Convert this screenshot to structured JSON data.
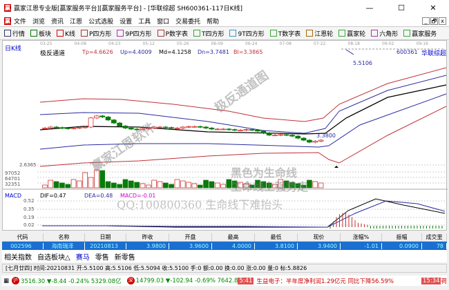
{
  "window": {
    "title": "赢家江恩专业版[赢家服务平台][赢家服务平台] - [华联综超  SH600361-117日K线]",
    "logo": "赢",
    "minimize": "—",
    "maximize": "☐",
    "close": "✕"
  },
  "menu": {
    "items": [
      "文件",
      "浏览",
      "资讯",
      "江恩",
      "公式选股",
      "设置",
      "工具",
      "窗口",
      "交易委托",
      "帮助"
    ],
    "mdi": [
      "_",
      "🗗",
      "x"
    ]
  },
  "toolbar": {
    "items": [
      {
        "icon": "grid-icon",
        "label": "行情"
      },
      {
        "icon": "blocks-icon",
        "label": "板块"
      },
      {
        "icon": "kline-icon",
        "label": "K线"
      },
      {
        "icon": "p-square-icon",
        "label": "P四方形"
      },
      {
        "icon": "9p-square-icon",
        "label": "9P四方形"
      },
      {
        "icon": "p-number-icon",
        "label": "P数字表"
      },
      {
        "icon": "t-square-icon",
        "label": "T四方形"
      },
      {
        "icon": "9t-square-icon",
        "label": "9T四方形"
      },
      {
        "icon": "t-number-icon",
        "label": "T数字表"
      },
      {
        "icon": "gann-wheel-icon",
        "label": "江恩轮"
      },
      {
        "icon": "winner-wheel-icon",
        "label": "赢家轮"
      },
      {
        "icon": "hexagon-icon",
        "label": "六角形"
      },
      {
        "icon": "dollar-icon",
        "label": "赢家服务"
      }
    ]
  },
  "chart": {
    "period": "日K线",
    "dates": [
      "03-25",
      "04-08",
      "04-23",
      "05-12",
      "05-26",
      "06-09",
      "06-24",
      "07-08",
      "07-22",
      "08-18",
      "09-02",
      "09-16"
    ],
    "indicator": "极反通道",
    "params": {
      "tp": "Tp=4.6626",
      "up": "Up=4.4009",
      "md": "Md=4.1258",
      "dn": "Dn=3.7481",
      "bl": "Bl=3.3865"
    },
    "stock": {
      "code": "600361",
      "name": "华联综超"
    },
    "high_label": "5.5106",
    "low_label": "3.3800",
    "price_axis": "2.6365",
    "vol_axis": [
      "97052",
      "64701",
      "32351"
    ],
    "colors": {
      "tp": "#c0303a",
      "up": "#2a2aa0",
      "md": "#000000",
      "dn": "#2a2aa0",
      "bl": "#c0303a",
      "up_candle": "#d03030",
      "down_candle": "#0a7a0a"
    },
    "closes": [
      4.1,
      4.12,
      4.11,
      4.1,
      4.09,
      4.1,
      4.11,
      4.12,
      4.3,
      4.34,
      4.32,
      4.26,
      4.2,
      4.14,
      4.1,
      4.08,
      4.07,
      4.09,
      4.1,
      4.12,
      4.12,
      4.11,
      4.1,
      4.1,
      4.12,
      4.13,
      4.13,
      4.12,
      4.1,
      4.08,
      4.08,
      4.08,
      4.07,
      4.06,
      4.06,
      4.07,
      4.06,
      4.04,
      4.0,
      3.96,
      3.96,
      3.97,
      3.96,
      3.94,
      3.9,
      3.86,
      3.82,
      3.84,
      3.86
    ]
  },
  "macd": {
    "title": "MACD",
    "dif": "DIF=0.47",
    "dea": "DEA=0.48",
    "macd": "MACD=-0.01",
    "axis": [
      "0.52",
      "0.35",
      "0.19",
      "0.02"
    ]
  },
  "watermarks": [
    "极反通道图",
    "赢家江恩软件",
    "黑色为生命线",
    "生命线上强势走",
    "QQ:100800360  生命线下难抬头"
  ],
  "table": {
    "headers": [
      "代码",
      "名称",
      "日期",
      "昨收",
      "开盘",
      "最高",
      "最低",
      "现价",
      "涨幅%",
      "振幅",
      "成交里"
    ],
    "row": [
      "002596",
      "海南瑞泽",
      "20210813",
      "3.9800",
      "3.9600",
      "4.0000",
      "3.8100",
      "3.9400",
      "-1.01",
      "0.0900",
      "78"
    ]
  },
  "tabs": [
    "相关指数",
    "自选板块△",
    "赛马",
    "零售",
    "新零售"
  ],
  "status": "[七月廿四] 时间:20210831 开:5.5100 高:5.5106 低:5.5094 收:5.5100 手:0 额:0.00 换:0.00 涨:0.00 量:0 标:5.8826",
  "ticker": {
    "sh": "3516.30 ▼-8.44 -0.24% 5329.08亿",
    "sz": "14799.03 ▼-102.94 -0.69% 7642.8",
    "time1": "5:41",
    "news": "生益电子：半年度净利润1.29亿元 同比下降56.59%",
    "time2": "15:34",
    "tail": "荷"
  }
}
